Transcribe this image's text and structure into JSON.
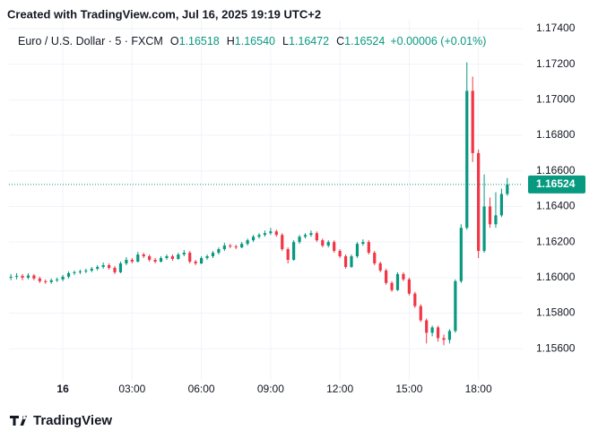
{
  "watermark": "Created with TradingView.com, Jul 16, 2025 19:19 UTC+2",
  "footer": "TradingView",
  "chart_data": {
    "type": "candlestick",
    "title": "Euro / U.S. Dollar · 5 · FXCM",
    "ohlc_header": [
      {
        "label": "O",
        "value": "1.16518"
      },
      {
        "label": "H",
        "value": "1.16540"
      },
      {
        "label": "L",
        "value": "1.16472"
      },
      {
        "label": "C",
        "value": "1.16524"
      }
    ],
    "change": "+0.00006 (+0.01%)",
    "up_color": "#089981",
    "down_color": "#f23645",
    "grid": true,
    "last_price": {
      "value": 1.16524,
      "label": "1.16524"
    },
    "xlim": [
      -140,
      1195
    ],
    "xticks": [
      {
        "value": 0,
        "label": "16"
      },
      {
        "value": 180,
        "label": "03:00"
      },
      {
        "value": 360,
        "label": "06:00"
      },
      {
        "value": 540,
        "label": "09:00"
      },
      {
        "value": 720,
        "label": "12:00"
      },
      {
        "value": 900,
        "label": "15:00"
      },
      {
        "value": 1080,
        "label": "18:00"
      }
    ],
    "ylim": [
      1.1542,
      1.1745
    ],
    "yticks": [
      {
        "value": 1.156,
        "label": "1.15600"
      },
      {
        "value": 1.158,
        "label": "1.15800"
      },
      {
        "value": 1.16,
        "label": "1.16000"
      },
      {
        "value": 1.162,
        "label": "1.16200"
      },
      {
        "value": 1.164,
        "label": "1.16400"
      },
      {
        "value": 1.166,
        "label": "1.16600"
      },
      {
        "value": 1.168,
        "label": "1.16800"
      },
      {
        "value": 1.17,
        "label": "1.17000"
      },
      {
        "value": 1.172,
        "label": "1.17200"
      },
      {
        "value": 1.174,
        "label": "1.17400"
      }
    ],
    "x": [
      -135,
      -120,
      -105,
      -90,
      -75,
      -60,
      -45,
      -30,
      -15,
      0,
      15,
      30,
      45,
      60,
      75,
      90,
      105,
      120,
      135,
      150,
      165,
      180,
      195,
      210,
      225,
      240,
      255,
      270,
      285,
      300,
      315,
      330,
      345,
      360,
      375,
      390,
      405,
      420,
      435,
      450,
      465,
      480,
      495,
      510,
      525,
      540,
      555,
      570,
      585,
      600,
      615,
      630,
      645,
      660,
      675,
      690,
      705,
      720,
      735,
      750,
      765,
      780,
      795,
      810,
      825,
      840,
      855,
      870,
      885,
      900,
      915,
      930,
      945,
      960,
      975,
      990,
      1005,
      1020,
      1035,
      1050,
      1065,
      1080,
      1095,
      1110,
      1125,
      1140,
      1155
    ],
    "candles": [
      [
        1.16,
        1.1602,
        1.15985,
        1.16005
      ],
      [
        1.16005,
        1.16025,
        1.1599,
        1.1601
      ],
      [
        1.1601,
        1.1602,
        1.15985,
        1.16
      ],
      [
        1.16,
        1.16025,
        1.1599,
        1.16012
      ],
      [
        1.16012,
        1.1602,
        1.15985,
        1.15995
      ],
      [
        1.15995,
        1.16005,
        1.1597,
        1.1598
      ],
      [
        1.1598,
        1.1599,
        1.15965,
        1.15975
      ],
      [
        1.15975,
        1.15995,
        1.15965,
        1.15985
      ],
      [
        1.15985,
        1.16,
        1.15975,
        1.1599
      ],
      [
        1.1599,
        1.16015,
        1.1598,
        1.16005
      ],
      [
        1.16005,
        1.16035,
        1.15995,
        1.16025
      ],
      [
        1.16025,
        1.1604,
        1.16015,
        1.1603
      ],
      [
        1.1603,
        1.16045,
        1.1602,
        1.16035
      ],
      [
        1.16035,
        1.1605,
        1.16025,
        1.1604
      ],
      [
        1.1604,
        1.1606,
        1.1603,
        1.1605
      ],
      [
        1.1605,
        1.1607,
        1.1604,
        1.1606
      ],
      [
        1.1606,
        1.16085,
        1.1605,
        1.1607
      ],
      [
        1.1607,
        1.1608,
        1.16045,
        1.16055
      ],
      [
        1.16055,
        1.16065,
        1.1602,
        1.1603
      ],
      [
        1.1603,
        1.1609,
        1.16025,
        1.1608
      ],
      [
        1.1608,
        1.16115,
        1.1607,
        1.161
      ],
      [
        1.161,
        1.1611,
        1.1608,
        1.1609
      ],
      [
        1.1609,
        1.16145,
        1.16085,
        1.1613
      ],
      [
        1.1613,
        1.1614,
        1.1611,
        1.1612
      ],
      [
        1.1612,
        1.1613,
        1.1609,
        1.161
      ],
      [
        1.161,
        1.1611,
        1.1608,
        1.1609
      ],
      [
        1.1609,
        1.1612,
        1.16085,
        1.1611
      ],
      [
        1.1611,
        1.1613,
        1.161,
        1.1612
      ],
      [
        1.1612,
        1.1613,
        1.16095,
        1.16105
      ],
      [
        1.16105,
        1.1614,
        1.161,
        1.1613
      ],
      [
        1.1613,
        1.16155,
        1.1612,
        1.1614
      ],
      [
        1.1614,
        1.1615,
        1.1608,
        1.1609
      ],
      [
        1.1609,
        1.161,
        1.1607,
        1.1608
      ],
      [
        1.1608,
        1.1612,
        1.16075,
        1.1611
      ],
      [
        1.1611,
        1.1613,
        1.161,
        1.1612
      ],
      [
        1.1612,
        1.1615,
        1.1611,
        1.1614
      ],
      [
        1.1614,
        1.1617,
        1.1613,
        1.1616
      ],
      [
        1.1616,
        1.16195,
        1.1615,
        1.1618
      ],
      [
        1.1618,
        1.1619,
        1.16165,
        1.16175
      ],
      [
        1.16175,
        1.16185,
        1.1616,
        1.1617
      ],
      [
        1.1617,
        1.162,
        1.16165,
        1.1619
      ],
      [
        1.1619,
        1.1622,
        1.1618,
        1.1621
      ],
      [
        1.1621,
        1.1624,
        1.162,
        1.1623
      ],
      [
        1.1623,
        1.1625,
        1.1622,
        1.1624
      ],
      [
        1.1624,
        1.16265,
        1.1623,
        1.1625
      ],
      [
        1.1625,
        1.1628,
        1.1624,
        1.1626
      ],
      [
        1.1626,
        1.1627,
        1.1623,
        1.1624
      ],
      [
        1.1624,
        1.1625,
        1.1615,
        1.1616
      ],
      [
        1.1616,
        1.1617,
        1.1608,
        1.161
      ],
      [
        1.161,
        1.1621,
        1.16095,
        1.162
      ],
      [
        1.162,
        1.1624,
        1.1619,
        1.1623
      ],
      [
        1.1623,
        1.1625,
        1.1622,
        1.1624
      ],
      [
        1.1624,
        1.16265,
        1.1623,
        1.1625
      ],
      [
        1.1625,
        1.1626,
        1.162,
        1.1621
      ],
      [
        1.1621,
        1.1622,
        1.1617,
        1.1618
      ],
      [
        1.1618,
        1.1621,
        1.1617,
        1.162
      ],
      [
        1.162,
        1.1621,
        1.1614,
        1.1615
      ],
      [
        1.1615,
        1.1616,
        1.1611,
        1.1612
      ],
      [
        1.1612,
        1.1613,
        1.1605,
        1.1606
      ],
      [
        1.1606,
        1.1613,
        1.16055,
        1.1612
      ],
      [
        1.1612,
        1.162,
        1.1611,
        1.1619
      ],
      [
        1.1619,
        1.16215,
        1.1618,
        1.162
      ],
      [
        1.162,
        1.1621,
        1.1613,
        1.1614
      ],
      [
        1.1614,
        1.1615,
        1.1607,
        1.1608
      ],
      [
        1.1608,
        1.1609,
        1.1603,
        1.1604
      ],
      [
        1.1604,
        1.1605,
        1.1596,
        1.1597
      ],
      [
        1.1597,
        1.1598,
        1.1592,
        1.1593
      ],
      [
        1.1593,
        1.1603,
        1.15925,
        1.1602
      ],
      [
        1.1602,
        1.1603,
        1.1598,
        1.1599
      ],
      [
        1.1599,
        1.16,
        1.159,
        1.1591
      ],
      [
        1.1591,
        1.1592,
        1.1583,
        1.1584
      ],
      [
        1.1584,
        1.1585,
        1.1575,
        1.1576
      ],
      [
        1.1576,
        1.1577,
        1.1563,
        1.1569
      ],
      [
        1.1569,
        1.1573,
        1.1567,
        1.1572
      ],
      [
        1.1572,
        1.1573,
        1.1564,
        1.1566
      ],
      [
        1.1566,
        1.1568,
        1.1562,
        1.1565
      ],
      [
        1.1565,
        1.1571,
        1.1563,
        1.157
      ],
      [
        1.157,
        1.1599,
        1.1569,
        1.1598
      ],
      [
        1.1598,
        1.163,
        1.1597,
        1.1628
      ],
      [
        1.1628,
        1.1721,
        1.1627,
        1.1705
      ],
      [
        1.1705,
        1.1713,
        1.1665,
        1.167
      ],
      [
        1.167,
        1.1672,
        1.1611,
        1.1615
      ],
      [
        1.1615,
        1.1658,
        1.1614,
        1.164
      ],
      [
        1.164,
        1.1645,
        1.1628,
        1.163
      ],
      [
        1.163,
        1.1648,
        1.1628,
        1.1635
      ],
      [
        1.1635,
        1.165,
        1.1634,
        1.1647
      ],
      [
        1.1647,
        1.1656,
        1.1646,
        1.16524
      ]
    ]
  }
}
